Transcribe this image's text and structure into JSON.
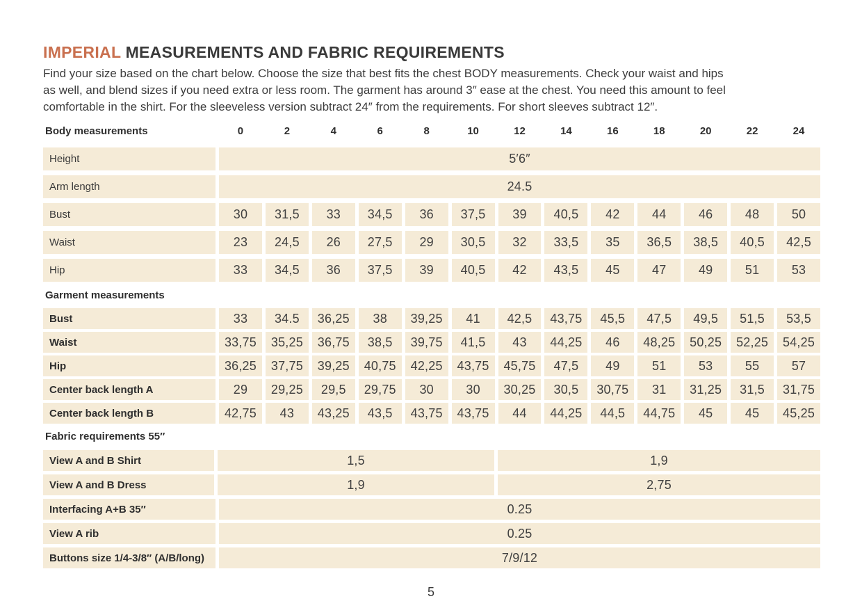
{
  "page": {
    "background_color": "#ffffff",
    "accent_color": "#c9704f",
    "cell_color": "#f5ebd7",
    "text_color": "#3a3a3a",
    "title_accent": "IMPERIAL",
    "title_rest": " MEASUREMENTS AND FABRIC REQUIREMENTS",
    "intro_lines": [
      "Find your size based on the chart below. Choose the size that best fits the chest BODY measurements.  Check your waist and hips",
      "as well, and blend sizes if you need extra or less room. The garment has around 3″ ease at the chest. You need this amount to feel",
      "comfortable in the shirt. For the sleeveless version subtract 24″ from the requirements. For short sleeves subtract 12″."
    ],
    "page_number": "5"
  },
  "table": {
    "header_label": "Body measurements",
    "sizes": [
      "0",
      "2",
      "4",
      "6",
      "8",
      "10",
      "12",
      "14",
      "16",
      "18",
      "20",
      "22",
      "24"
    ],
    "sections": [
      {
        "name": "body-measurements",
        "header": "",
        "bold_labels": false,
        "row_class": "body-row",
        "rows": [
          {
            "label": "Height",
            "type": "full",
            "value": "5′6″"
          },
          {
            "label": "Arm length",
            "type": "full",
            "value": "24.5"
          },
          {
            "label": "Bust",
            "type": "cells",
            "values": [
              "30",
              "31,5",
              "33",
              "34,5",
              "36",
              "37,5",
              "39",
              "40,5",
              "42",
              "44",
              "46",
              "48",
              "50"
            ]
          },
          {
            "label": "Waist",
            "type": "cells",
            "values": [
              "23",
              "24,5",
              "26",
              "27,5",
              "29",
              "30,5",
              "32",
              "33,5",
              "35",
              "36,5",
              "38,5",
              "40,5",
              "42,5"
            ]
          },
          {
            "label": "Hip",
            "type": "cells",
            "values": [
              "33",
              "34,5",
              "36",
              "37,5",
              "39",
              "40,5",
              "42",
              "43,5",
              "45",
              "47",
              "49",
              "51",
              "53"
            ]
          }
        ]
      },
      {
        "name": "garment-measurements",
        "header": "Garment measurements",
        "bold_labels": true,
        "row_class": "garment-row",
        "rows": [
          {
            "label": "Bust",
            "type": "cells",
            "values": [
              "33",
              "34.5",
              "36,25",
              "38",
              "39,25",
              "41",
              "42,5",
              "43,75",
              "45,5",
              "47,5",
              "49,5",
              "51,5",
              "53,5"
            ]
          },
          {
            "label": "Waist",
            "type": "cells",
            "values": [
              "33,75",
              "35,25",
              "36,75",
              "38,5",
              "39,75",
              "41,5",
              "43",
              "44,25",
              "46",
              "48,25",
              "50,25",
              "52,25",
              "54,25"
            ]
          },
          {
            "label": "Hip",
            "type": "cells",
            "values": [
              "36,25",
              "37,75",
              "39,25",
              "40,75",
              "42,25",
              "43,75",
              "45,75",
              "47,5",
              "49",
              "51",
              "53",
              "55",
              "57"
            ]
          },
          {
            "label": "Center back length A",
            "type": "cells",
            "values": [
              "29",
              "29,25",
              "29,5",
              "29,75",
              "30",
              "30",
              "30,25",
              "30,5",
              "30,75",
              "31",
              "31,25",
              "31,5",
              "31,75"
            ]
          },
          {
            "label": "Center back length B",
            "type": "cells",
            "values": [
              "42,75",
              "43",
              "43,25",
              "43,5",
              "43,75",
              "43,75",
              "44",
              "44,25",
              "44,5",
              "44,75",
              "45",
              "45",
              "45,25"
            ]
          }
        ]
      },
      {
        "name": "fabric-requirements",
        "header": "Fabric requirements 55″",
        "bold_labels": true,
        "row_class": "fabric-row",
        "rows": [
          {
            "label": "View A and B Shirt",
            "type": "split",
            "values": [
              "1,5",
              "1,9"
            ]
          },
          {
            "label": "View A and B Dress",
            "type": "split",
            "values": [
              "1,9",
              "2,75"
            ]
          },
          {
            "label": "Interfacing  A+B 35″",
            "type": "full",
            "value": "0.25"
          },
          {
            "label": "View A rib",
            "type": "full",
            "value": "0.25"
          },
          {
            "label": "Buttons size 1/4-3/8″ (A/B/long)",
            "type": "full",
            "value": "7/9/12"
          }
        ]
      }
    ]
  }
}
